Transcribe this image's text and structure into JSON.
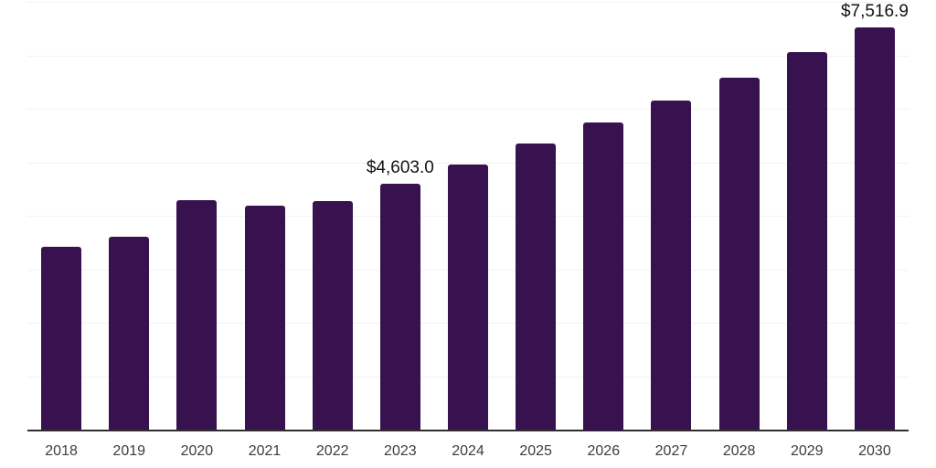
{
  "chart_data": {
    "type": "bar",
    "title": "",
    "xlabel": "",
    "ylabel": "",
    "categories": [
      "2018",
      "2019",
      "2020",
      "2021",
      "2022",
      "2023",
      "2024",
      "2025",
      "2026",
      "2027",
      "2028",
      "2029",
      "2030"
    ],
    "values": [
      3430,
      3610,
      4290,
      4190,
      4280,
      4603.0,
      4960,
      5360,
      5750,
      6150,
      6590,
      7060,
      7516.9
    ],
    "data_labels": [
      "",
      "",
      "",
      "",
      "",
      "$4,603.0",
      "",
      "",
      "",
      "",
      "",
      "",
      "$7,516.9"
    ],
    "ylim": [
      0,
      8000
    ],
    "grid_step": 1000,
    "grid": "horizontal-light",
    "y_tick_labels_visible": false,
    "legend_position": "none"
  },
  "colors": {
    "bar": "#37124f",
    "gridline": "#f2f2f2",
    "axis_line": "#2e2e2e",
    "year_label": "#3d3d3d",
    "value_label": "#121212",
    "background": "#ffffff"
  }
}
